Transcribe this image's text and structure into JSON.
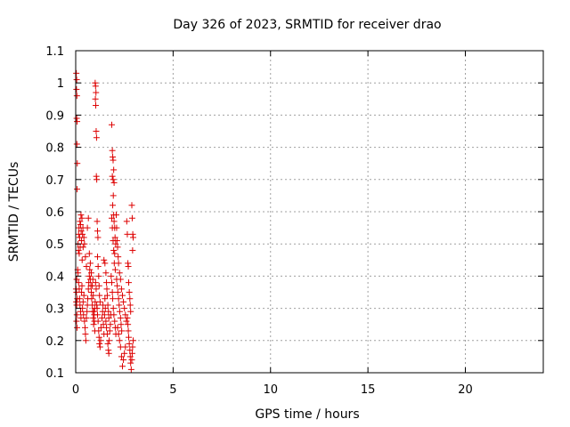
{
  "chart_data": {
    "type": "scatter",
    "title": "Day 326 of 2023, SRMTID for receiver drao",
    "xlabel": "GPS time / hours",
    "ylabel": "SRMTID / TECUs",
    "xlim": [
      0,
      24
    ],
    "ylim": [
      0.1,
      1.1
    ],
    "xticks": [
      0,
      5,
      10,
      15,
      20
    ],
    "xtick_labels": [
      "0",
      "5",
      "10",
      "15",
      "20"
    ],
    "yticks": [
      0.1,
      0.2,
      0.3,
      0.4,
      0.5,
      0.6,
      0.7,
      0.8,
      0.9,
      1.0,
      1.1
    ],
    "ytick_labels": [
      "0.1",
      "0.2",
      "0.3",
      "0.4",
      "0.5",
      "0.6",
      "0.7",
      "0.8",
      "0.9",
      "1",
      "1.1"
    ],
    "grid": true,
    "marker": "+",
    "marker_color": "#dd0000",
    "series": [
      {
        "name": "SRMTID",
        "points": [
          [
            0.03,
            1.03
          ],
          [
            0.05,
            1.01
          ],
          [
            0.04,
            0.98
          ],
          [
            0.06,
            0.96
          ],
          [
            0.05,
            0.89
          ],
          [
            0.07,
            0.88
          ],
          [
            0.06,
            0.81
          ],
          [
            0.08,
            0.75
          ],
          [
            0.07,
            0.67
          ],
          [
            0.02,
            0.36
          ],
          [
            0.04,
            0.35
          ],
          [
            0.03,
            0.32
          ],
          [
            0.05,
            0.31
          ],
          [
            0.06,
            0.28
          ],
          [
            0.04,
            0.26
          ],
          [
            0.07,
            0.24
          ],
          [
            0.08,
            0.33
          ],
          [
            0.05,
            0.39
          ],
          [
            0.1,
            0.42
          ],
          [
            0.12,
            0.5
          ],
          [
            0.14,
            0.48
          ],
          [
            0.15,
            0.53
          ],
          [
            0.17,
            0.55
          ],
          [
            0.18,
            0.47
          ],
          [
            0.2,
            0.52
          ],
          [
            0.22,
            0.57
          ],
          [
            0.23,
            0.49
          ],
          [
            0.25,
            0.56
          ],
          [
            0.27,
            0.59
          ],
          [
            0.28,
            0.54
          ],
          [
            0.3,
            0.51
          ],
          [
            0.32,
            0.58
          ],
          [
            0.33,
            0.45
          ],
          [
            0.35,
            0.53
          ],
          [
            0.37,
            0.55
          ],
          [
            0.38,
            0.49
          ],
          [
            0.12,
            0.41
          ],
          [
            0.15,
            0.38
          ],
          [
            0.18,
            0.36
          ],
          [
            0.2,
            0.33
          ],
          [
            0.22,
            0.31
          ],
          [
            0.25,
            0.29
          ],
          [
            0.27,
            0.27
          ],
          [
            0.3,
            0.35
          ],
          [
            0.32,
            0.37
          ],
          [
            0.35,
            0.3
          ],
          [
            0.38,
            0.32
          ],
          [
            0.4,
            0.28
          ],
          [
            0.42,
            0.34
          ],
          [
            0.45,
            0.26
          ],
          [
            0.48,
            0.24
          ],
          [
            0.5,
            0.22
          ],
          [
            0.52,
            0.2
          ],
          [
            0.55,
            0.27
          ],
          [
            0.58,
            0.29
          ],
          [
            0.6,
            0.31
          ],
          [
            0.62,
            0.33
          ],
          [
            0.65,
            0.36
          ],
          [
            0.67,
            0.38
          ],
          [
            0.7,
            0.4
          ],
          [
            0.72,
            0.42
          ],
          [
            0.75,
            0.39
          ],
          [
            0.78,
            0.37
          ],
          [
            0.8,
            0.35
          ],
          [
            0.82,
            0.33
          ],
          [
            0.85,
            0.31
          ],
          [
            0.87,
            0.29
          ],
          [
            0.9,
            0.27
          ],
          [
            0.92,
            0.25
          ],
          [
            0.95,
            0.28
          ],
          [
            0.97,
            0.3
          ],
          [
            1.0,
            0.32
          ],
          [
            0.6,
            0.55
          ],
          [
            0.65,
            0.58
          ],
          [
            0.7,
            0.47
          ],
          [
            0.75,
            0.44
          ],
          [
            0.8,
            0.41
          ],
          [
            0.55,
            0.43
          ],
          [
            0.5,
            0.46
          ],
          [
            0.45,
            0.5
          ],
          [
            0.42,
            0.52
          ],
          [
            0.85,
            0.37
          ],
          [
            0.88,
            0.39
          ],
          [
            0.9,
            0.34
          ],
          [
            0.93,
            0.29
          ],
          [
            0.96,
            0.26
          ],
          [
            0.98,
            0.23
          ],
          [
            1.02,
            0.38
          ],
          [
            1.05,
            0.36
          ],
          [
            1.08,
            0.31
          ],
          [
            1.0,
            1.0
          ],
          [
            1.02,
            0.99
          ],
          [
            1.04,
            0.97
          ],
          [
            1.01,
            0.95
          ],
          [
            1.03,
            0.93
          ],
          [
            1.05,
            0.85
          ],
          [
            1.07,
            0.83
          ],
          [
            1.06,
            0.71
          ],
          [
            1.08,
            0.7
          ],
          [
            1.1,
            0.57
          ],
          [
            1.12,
            0.54
          ],
          [
            1.14,
            0.52
          ],
          [
            1.12,
            0.46
          ],
          [
            1.15,
            0.43
          ],
          [
            1.18,
            0.4
          ],
          [
            1.2,
            0.37
          ],
          [
            1.22,
            0.34
          ],
          [
            1.25,
            0.32
          ],
          [
            1.1,
            0.3
          ],
          [
            1.12,
            0.28
          ],
          [
            1.15,
            0.26
          ],
          [
            1.18,
            0.23
          ],
          [
            1.2,
            0.21
          ],
          [
            1.22,
            0.19
          ],
          [
            1.25,
            0.18
          ],
          [
            1.28,
            0.2
          ],
          [
            1.3,
            0.24
          ],
          [
            1.35,
            0.27
          ],
          [
            1.38,
            0.29
          ],
          [
            1.4,
            0.31
          ],
          [
            1.42,
            0.25
          ],
          [
            1.45,
            0.22
          ],
          [
            1.48,
            0.28
          ],
          [
            1.5,
            0.33
          ],
          [
            1.52,
            0.3
          ],
          [
            1.55,
            0.26
          ],
          [
            1.45,
            0.45
          ],
          [
            1.5,
            0.44
          ],
          [
            1.55,
            0.41
          ],
          [
            1.58,
            0.38
          ],
          [
            1.6,
            0.36
          ],
          [
            1.62,
            0.34
          ],
          [
            1.65,
            0.31
          ],
          [
            1.68,
            0.29
          ],
          [
            1.7,
            0.27
          ],
          [
            1.58,
            0.24
          ],
          [
            1.62,
            0.22
          ],
          [
            1.65,
            0.19
          ],
          [
            1.68,
            0.17
          ],
          [
            1.7,
            0.16
          ],
          [
            1.72,
            0.2
          ],
          [
            1.75,
            0.23
          ],
          [
            1.78,
            0.25
          ],
          [
            1.8,
            0.28
          ],
          [
            1.85,
            0.87
          ],
          [
            1.88,
            0.79
          ],
          [
            1.9,
            0.77
          ],
          [
            1.92,
            0.76
          ],
          [
            1.88,
            0.71
          ],
          [
            1.92,
            0.7
          ],
          [
            1.95,
            0.73
          ],
          [
            1.97,
            0.69
          ],
          [
            1.93,
            0.65
          ],
          [
            1.9,
            0.62
          ],
          [
            1.95,
            0.59
          ],
          [
            1.97,
            0.57
          ],
          [
            2.0,
            0.55
          ],
          [
            2.02,
            0.52
          ],
          [
            2.05,
            0.5
          ],
          [
            2.0,
            0.47
          ],
          [
            1.98,
            0.44
          ],
          [
            2.03,
            0.42
          ],
          [
            1.85,
            0.58
          ],
          [
            1.88,
            0.55
          ],
          [
            1.92,
            0.51
          ],
          [
            1.95,
            0.48
          ],
          [
            2.08,
            0.59
          ],
          [
            2.1,
            0.55
          ],
          [
            2.12,
            0.51
          ],
          [
            2.15,
            0.49
          ],
          [
            2.18,
            0.46
          ],
          [
            1.82,
            0.4
          ],
          [
            1.85,
            0.38
          ],
          [
            1.88,
            0.35
          ],
          [
            1.9,
            0.33
          ],
          [
            1.93,
            0.3
          ],
          [
            1.96,
            0.28
          ],
          [
            2.0,
            0.26
          ],
          [
            2.03,
            0.24
          ],
          [
            2.06,
            0.22
          ],
          [
            2.1,
            0.39
          ],
          [
            2.13,
            0.37
          ],
          [
            2.16,
            0.35
          ],
          [
            2.2,
            0.33
          ],
          [
            2.23,
            0.31
          ],
          [
            2.26,
            0.29
          ],
          [
            2.3,
            0.27
          ],
          [
            2.33,
            0.25
          ],
          [
            2.36,
            0.23
          ],
          [
            2.2,
            0.44
          ],
          [
            2.25,
            0.41
          ],
          [
            2.3,
            0.39
          ],
          [
            2.35,
            0.36
          ],
          [
            2.4,
            0.34
          ],
          [
            2.45,
            0.32
          ],
          [
            2.5,
            0.3
          ],
          [
            2.55,
            0.28
          ],
          [
            2.6,
            0.26
          ],
          [
            2.62,
            0.57
          ],
          [
            2.65,
            0.53
          ],
          [
            2.68,
            0.44
          ],
          [
            2.7,
            0.43
          ],
          [
            2.72,
            0.38
          ],
          [
            2.75,
            0.35
          ],
          [
            2.78,
            0.33
          ],
          [
            2.8,
            0.31
          ],
          [
            2.82,
            0.29
          ],
          [
            2.65,
            0.27
          ],
          [
            2.68,
            0.25
          ],
          [
            2.7,
            0.23
          ],
          [
            2.72,
            0.21
          ],
          [
            2.75,
            0.19
          ],
          [
            2.78,
            0.17
          ],
          [
            2.8,
            0.15
          ],
          [
            2.82,
            0.13
          ],
          [
            2.85,
            0.11
          ],
          [
            2.88,
            0.14
          ],
          [
            2.9,
            0.16
          ],
          [
            2.92,
            0.18
          ],
          [
            2.95,
            0.2
          ],
          [
            2.88,
            0.62
          ],
          [
            2.9,
            0.58
          ],
          [
            2.93,
            0.53
          ],
          [
            2.95,
            0.52
          ],
          [
            2.92,
            0.48
          ],
          [
            2.4,
            0.12
          ],
          [
            2.45,
            0.14
          ],
          [
            2.5,
            0.16
          ],
          [
            2.55,
            0.18
          ],
          [
            2.35,
            0.15
          ],
          [
            2.3,
            0.18
          ],
          [
            2.25,
            0.2
          ],
          [
            2.2,
            0.22
          ],
          [
            2.15,
            0.24
          ]
        ]
      }
    ]
  }
}
